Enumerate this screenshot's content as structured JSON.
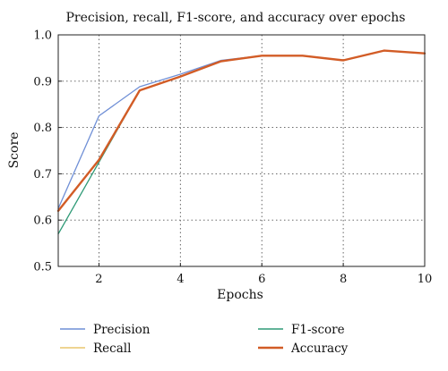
{
  "chart_data": {
    "type": "line",
    "title": "Precision, recall, F1-score, and accuracy over epochs",
    "xlabel": "Epochs",
    "ylabel": "Score",
    "x": [
      1,
      2,
      3,
      4,
      5,
      6,
      7,
      8,
      9,
      10
    ],
    "xlim": [
      1,
      10
    ],
    "ylim": [
      0.5,
      1.0
    ],
    "xticks": [
      2,
      4,
      6,
      8,
      10
    ],
    "yticks": [
      0.5,
      0.6,
      0.7,
      0.8,
      0.9,
      1.0
    ],
    "x_tick_labels": [
      "2",
      "4",
      "6",
      "8",
      "10"
    ],
    "y_tick_labels": [
      "0.5",
      "0.6",
      "0.7",
      "0.8",
      "0.9",
      "1.0"
    ],
    "grid": true,
    "legend_position": "bottom",
    "series": [
      {
        "name": "Precision",
        "color": "#6f8fd6",
        "values": [
          0.625,
          0.825,
          0.888,
          0.915,
          0.945,
          0.955,
          0.955,
          0.945,
          0.966,
          0.96
        ]
      },
      {
        "name": "Recall",
        "color": "#e8c56d",
        "values": [
          0.62,
          0.73,
          0.88,
          0.91,
          0.943,
          0.955,
          0.955,
          0.945,
          0.966,
          0.96
        ]
      },
      {
        "name": "F1-score",
        "color": "#2e9a76",
        "values": [
          0.57,
          0.725,
          0.88,
          0.91,
          0.943,
          0.955,
          0.955,
          0.945,
          0.966,
          0.96
        ]
      },
      {
        "name": "Accuracy",
        "color": "#d25c26",
        "values": [
          0.62,
          0.73,
          0.88,
          0.91,
          0.943,
          0.955,
          0.955,
          0.945,
          0.966,
          0.96
        ]
      }
    ]
  }
}
